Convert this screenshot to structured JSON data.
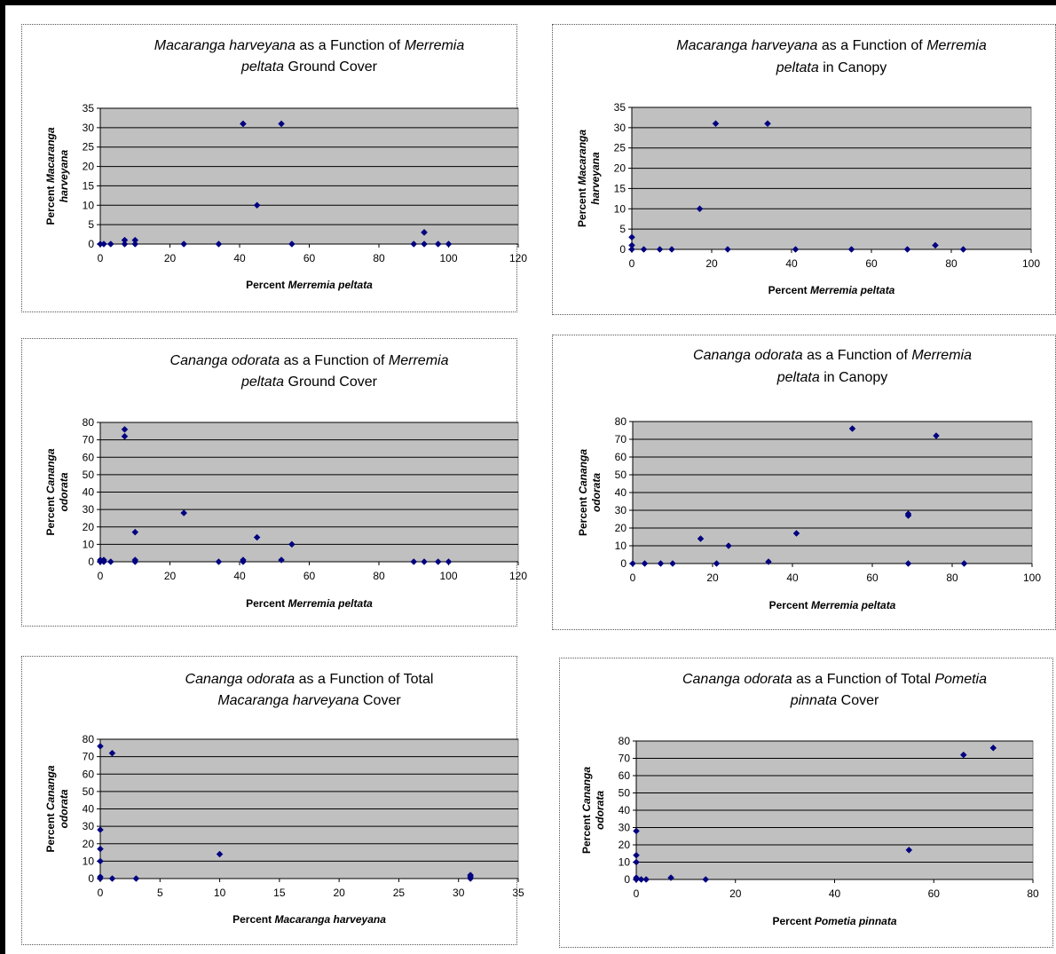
{
  "chart_data": [
    {
      "type": "scatter",
      "title_parts": [
        [
          {
            "t": "Macaranga harveyana",
            "i": true
          },
          {
            "t": " as a Function of ",
            "i": false
          },
          {
            "t": "Merremia",
            "i": true
          }
        ],
        [
          {
            "t": "peltata",
            "i": true
          },
          {
            "t": " Ground Cover",
            "i": false
          }
        ]
      ],
      "xlabel_parts": [
        {
          "t": "Percent ",
          "i": false
        },
        {
          "t": "Merremia peltata",
          "i": true
        }
      ],
      "ylabel_lines": [
        [
          {
            "t": "Percent ",
            "i": false
          },
          {
            "t": "Macaranga",
            "i": true
          }
        ],
        [
          {
            "t": "harveyana",
            "i": true
          }
        ]
      ],
      "xlim": [
        0,
        120
      ],
      "ylim": [
        0,
        35
      ],
      "xticks": [
        0,
        20,
        40,
        60,
        80,
        100,
        120
      ],
      "yticks": [
        0,
        5,
        10,
        15,
        20,
        25,
        30,
        35
      ],
      "points": [
        [
          0,
          0
        ],
        [
          1,
          0
        ],
        [
          3,
          0
        ],
        [
          7,
          0
        ],
        [
          7,
          1
        ],
        [
          10,
          0
        ],
        [
          10,
          1
        ],
        [
          24,
          0
        ],
        [
          34,
          0
        ],
        [
          41,
          31
        ],
        [
          41,
          31
        ],
        [
          45,
          10
        ],
        [
          52,
          31
        ],
        [
          55,
          0
        ],
        [
          90,
          0
        ],
        [
          93,
          0
        ],
        [
          93,
          3
        ],
        [
          93,
          3
        ],
        [
          97,
          0
        ],
        [
          100,
          0
        ]
      ]
    },
    {
      "type": "scatter",
      "title_parts": [
        [
          {
            "t": "Macaranga harveyana",
            "i": true
          },
          {
            "t": " as a Function of ",
            "i": false
          },
          {
            "t": "Merremia",
            "i": true
          }
        ],
        [
          {
            "t": "peltata",
            "i": true
          },
          {
            "t": " in Canopy",
            "i": false
          }
        ]
      ],
      "xlabel_parts": [
        {
          "t": "Percent ",
          "i": false
        },
        {
          "t": "Merremia peltata",
          "i": true
        }
      ],
      "ylabel_lines": [
        [
          {
            "t": "Percent ",
            "i": false
          },
          {
            "t": "Macaranga",
            "i": true
          }
        ],
        [
          {
            "t": "harveyana",
            "i": true
          }
        ]
      ],
      "xlim": [
        0,
        100
      ],
      "ylim": [
        0,
        35
      ],
      "xticks": [
        0,
        20,
        40,
        60,
        80,
        100
      ],
      "yticks": [
        0,
        5,
        10,
        15,
        20,
        25,
        30,
        35
      ],
      "points": [
        [
          0,
          0
        ],
        [
          0,
          1
        ],
        [
          0,
          3
        ],
        [
          3,
          0
        ],
        [
          7,
          0
        ],
        [
          10,
          0
        ],
        [
          17,
          10
        ],
        [
          21,
          31
        ],
        [
          24,
          0
        ],
        [
          34,
          31
        ],
        [
          41,
          0
        ],
        [
          55,
          0
        ],
        [
          69,
          0
        ],
        [
          76,
          1
        ],
        [
          83,
          0
        ]
      ]
    },
    {
      "type": "scatter",
      "title_parts": [
        [
          {
            "t": "Cananga odorata",
            "i": true
          },
          {
            "t": " as a Function of ",
            "i": false
          },
          {
            "t": "Merremia",
            "i": true
          }
        ],
        [
          {
            "t": "peltata",
            "i": true
          },
          {
            "t": " Ground Cover",
            "i": false
          }
        ]
      ],
      "xlabel_parts": [
        {
          "t": "Percent ",
          "i": false
        },
        {
          "t": "Merremia peltata",
          "i": true
        }
      ],
      "ylabel_lines": [
        [
          {
            "t": "Percent ",
            "i": false
          },
          {
            "t": "Cananga",
            "i": true
          }
        ],
        [
          {
            "t": "odorata",
            "i": true
          }
        ]
      ],
      "xlim": [
        0,
        120
      ],
      "ylim": [
        0,
        80
      ],
      "xticks": [
        0,
        20,
        40,
        60,
        80,
        100,
        120
      ],
      "yticks": [
        0,
        10,
        20,
        30,
        40,
        50,
        60,
        70,
        80
      ],
      "points": [
        [
          0,
          0
        ],
        [
          0,
          1
        ],
        [
          1,
          0
        ],
        [
          1,
          1
        ],
        [
          3,
          0
        ],
        [
          7,
          72
        ],
        [
          7,
          76
        ],
        [
          10,
          0
        ],
        [
          10,
          1
        ],
        [
          10,
          17
        ],
        [
          24,
          28
        ],
        [
          34,
          0
        ],
        [
          41,
          0
        ],
        [
          41,
          1
        ],
        [
          45,
          14
        ],
        [
          52,
          1
        ],
        [
          55,
          10
        ],
        [
          90,
          0
        ],
        [
          93,
          0
        ],
        [
          97,
          0
        ],
        [
          100,
          0
        ]
      ]
    },
    {
      "type": "scatter",
      "title_parts": [
        [
          {
            "t": "Cananga odorata",
            "i": true
          },
          {
            "t": " as a Function of ",
            "i": false
          },
          {
            "t": "Merremia",
            "i": true
          }
        ],
        [
          {
            "t": "peltata",
            "i": true
          },
          {
            "t": " in Canopy",
            "i": false
          }
        ]
      ],
      "xlabel_parts": [
        {
          "t": "Percent ",
          "i": false
        },
        {
          "t": "Merremia peltata",
          "i": true
        }
      ],
      "ylabel_lines": [
        [
          {
            "t": "Percent ",
            "i": false
          },
          {
            "t": "Cananga",
            "i": true
          }
        ],
        [
          {
            "t": "odorata",
            "i": true
          }
        ]
      ],
      "xlim": [
        0,
        100
      ],
      "ylim": [
        0,
        80
      ],
      "xticks": [
        0,
        20,
        40,
        60,
        80,
        100
      ],
      "yticks": [
        0,
        10,
        20,
        30,
        40,
        50,
        60,
        70,
        80
      ],
      "points": [
        [
          0,
          0
        ],
        [
          3,
          0
        ],
        [
          7,
          0
        ],
        [
          10,
          0
        ],
        [
          17,
          14
        ],
        [
          21,
          0
        ],
        [
          24,
          10
        ],
        [
          34,
          1
        ],
        [
          41,
          17
        ],
        [
          55,
          76
        ],
        [
          69,
          0
        ],
        [
          69,
          27
        ],
        [
          69,
          28
        ],
        [
          76,
          72
        ],
        [
          83,
          0
        ]
      ]
    },
    {
      "type": "scatter",
      "title_parts": [
        [
          {
            "t": "Cananga odorata",
            "i": true
          },
          {
            "t": " as a Function of Total",
            "i": false
          }
        ],
        [
          {
            "t": "Macaranga harveyana",
            "i": true
          },
          {
            "t": " Cover",
            "i": false
          }
        ]
      ],
      "xlabel_parts": [
        {
          "t": "Percent ",
          "i": false
        },
        {
          "t": "Macaranga harveyana",
          "i": true
        }
      ],
      "ylabel_lines": [
        [
          {
            "t": "Percent ",
            "i": false
          },
          {
            "t": "Cananga",
            "i": true
          }
        ],
        [
          {
            "t": "odorata",
            "i": true
          }
        ]
      ],
      "xlim": [
        0,
        35
      ],
      "ylim": [
        0,
        80
      ],
      "xticks": [
        0,
        5,
        10,
        15,
        20,
        25,
        30,
        35
      ],
      "yticks": [
        0,
        10,
        20,
        30,
        40,
        50,
        60,
        70,
        80
      ],
      "points": [
        [
          0,
          76
        ],
        [
          0,
          28
        ],
        [
          0,
          17
        ],
        [
          0,
          10
        ],
        [
          0,
          1
        ],
        [
          0,
          0
        ],
        [
          1,
          72
        ],
        [
          1,
          0
        ],
        [
          3,
          0
        ],
        [
          10,
          14
        ],
        [
          31,
          0
        ],
        [
          31,
          1
        ],
        [
          31,
          2
        ]
      ]
    },
    {
      "type": "scatter",
      "title_parts": [
        [
          {
            "t": "Cananga odorata",
            "i": true
          },
          {
            "t": " as a Function of Total ",
            "i": false
          },
          {
            "t": "Pometia",
            "i": true
          }
        ],
        [
          {
            "t": "pinnata",
            "i": true
          },
          {
            "t": " Cover",
            "i": false
          }
        ]
      ],
      "xlabel_parts": [
        {
          "t": "Percent ",
          "i": false
        },
        {
          "t": "Pometia pinnata",
          "i": true
        }
      ],
      "ylabel_lines": [
        [
          {
            "t": "Percent ",
            "i": false
          },
          {
            "t": "Cananga",
            "i": true
          }
        ],
        [
          {
            "t": "odorata",
            "i": true
          }
        ]
      ],
      "xlim": [
        0,
        80
      ],
      "ylim": [
        0,
        80
      ],
      "xticks": [
        0,
        20,
        40,
        60,
        80
      ],
      "yticks": [
        0,
        10,
        20,
        30,
        40,
        50,
        60,
        70,
        80
      ],
      "points": [
        [
          0,
          28
        ],
        [
          0,
          14
        ],
        [
          0,
          10
        ],
        [
          0,
          1
        ],
        [
          0,
          0
        ],
        [
          1,
          0
        ],
        [
          2,
          0
        ],
        [
          7,
          1
        ],
        [
          14,
          0
        ],
        [
          55,
          17
        ],
        [
          66,
          72
        ],
        [
          72,
          76
        ]
      ]
    }
  ]
}
